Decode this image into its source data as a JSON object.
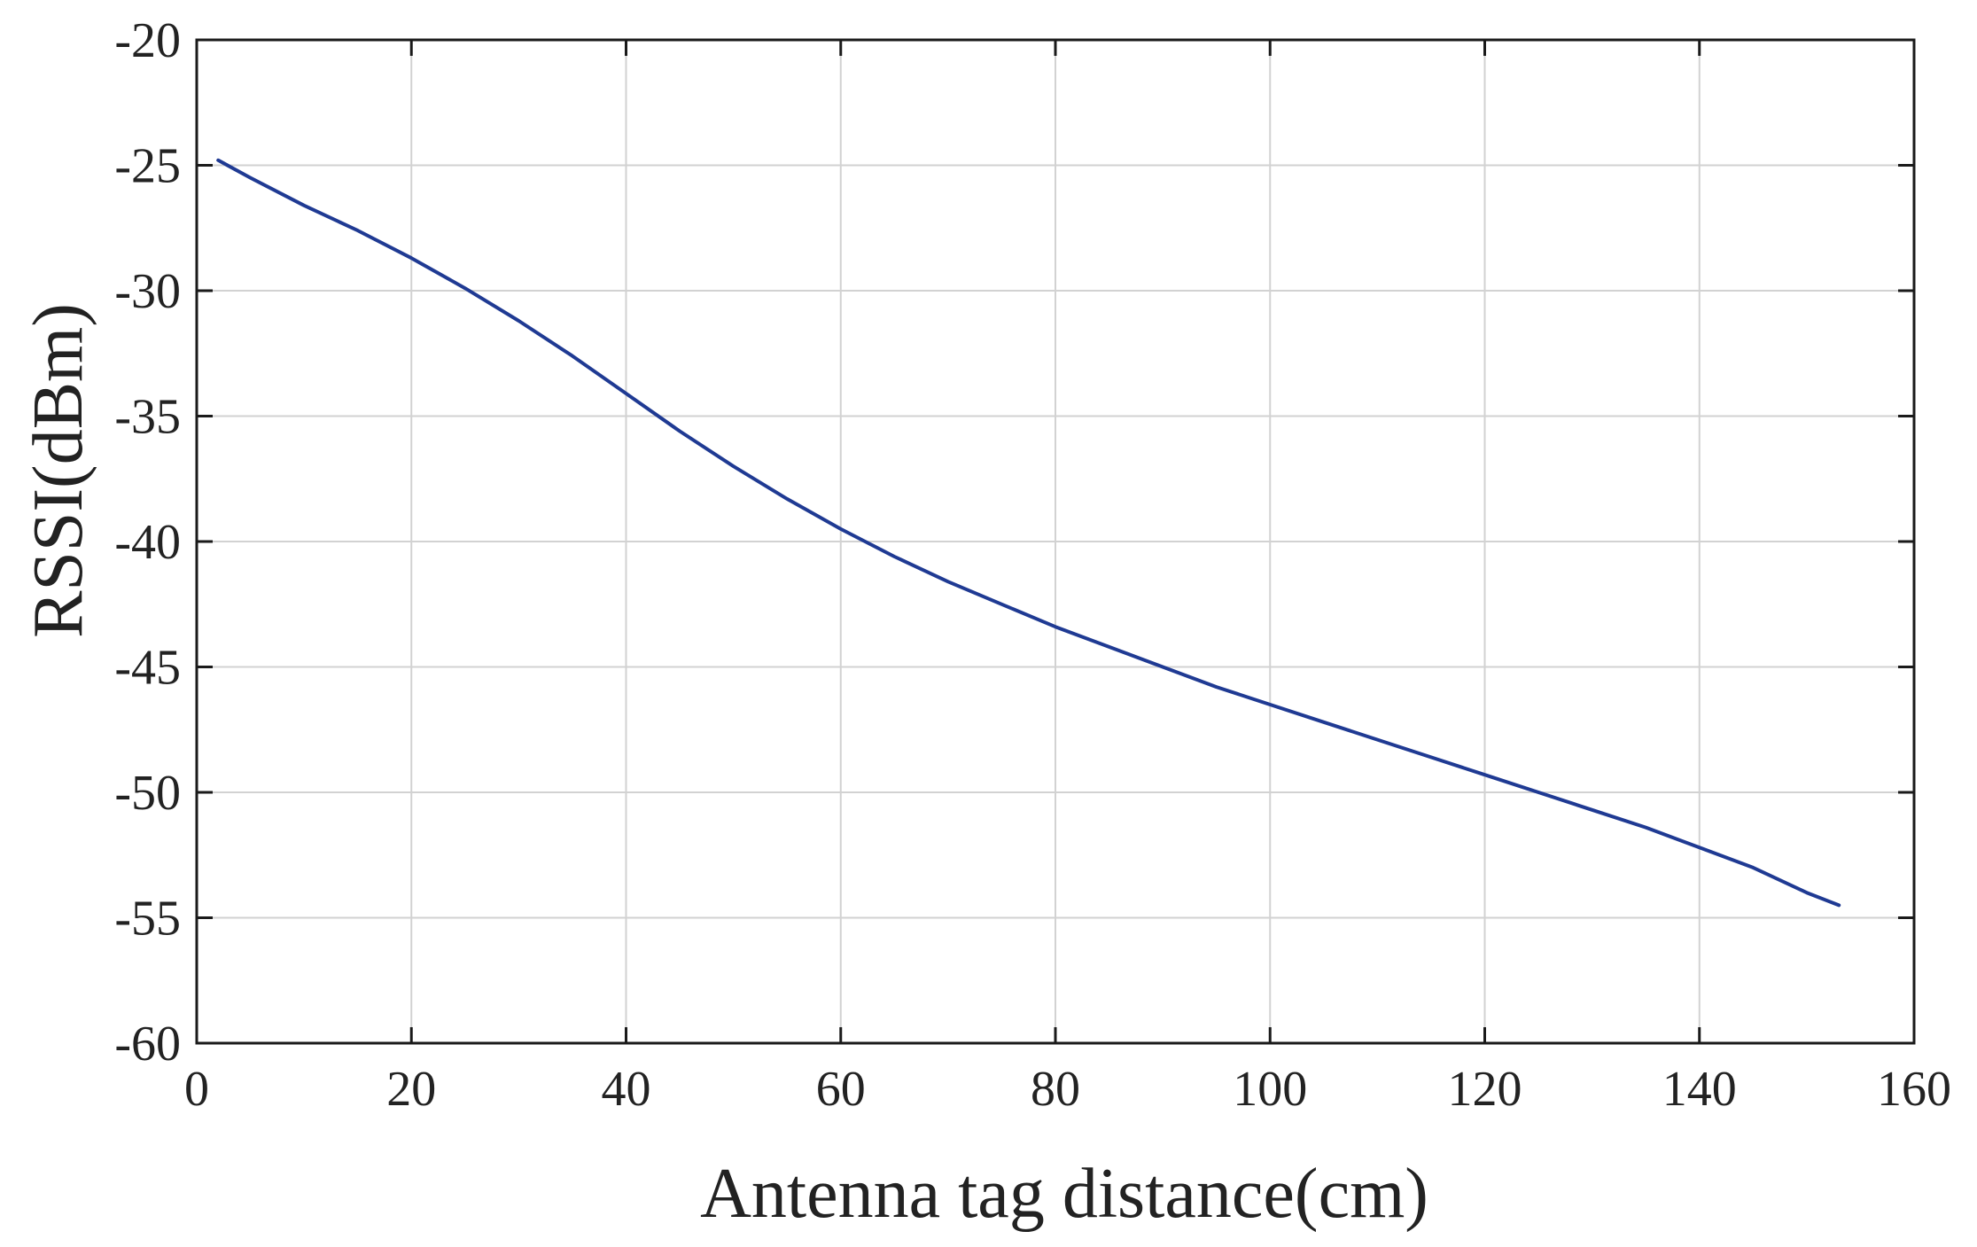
{
  "chart_data": {
    "type": "line",
    "title": "",
    "xlabel": "Antenna tag distance(cm)",
    "ylabel": "RSSI(dBm)",
    "xlim": [
      0,
      160
    ],
    "ylim": [
      -60,
      -20
    ],
    "xticks": [
      0,
      20,
      40,
      60,
      80,
      100,
      120,
      140,
      160
    ],
    "yticks": [
      -20,
      -25,
      -30,
      -35,
      -40,
      -45,
      -50,
      -55,
      -60
    ],
    "xtick_labels": [
      "0",
      "20",
      "40",
      "60",
      "80",
      "100",
      "120",
      "140",
      "160"
    ],
    "ytick_labels": [
      "-20",
      "-25",
      "-30",
      "-35",
      "-40",
      "-45",
      "-50",
      "-55",
      "-60"
    ],
    "grid": true,
    "legend": "none",
    "colors": {
      "line": "#1f3a93"
    },
    "series": [
      {
        "x": [
          2,
          5,
          10,
          15,
          20,
          25,
          30,
          35,
          40,
          45,
          50,
          55,
          60,
          65,
          70,
          75,
          80,
          85,
          90,
          95,
          100,
          105,
          110,
          115,
          120,
          125,
          130,
          135,
          140,
          145,
          150,
          153
        ],
        "values": [
          -24.8,
          -25.5,
          -26.6,
          -27.6,
          -28.7,
          -29.9,
          -31.2,
          -32.6,
          -34.1,
          -35.6,
          -37.0,
          -38.3,
          -39.5,
          -40.6,
          -41.6,
          -42.5,
          -43.4,
          -44.2,
          -45.0,
          -45.8,
          -46.5,
          -47.2,
          -47.9,
          -48.6,
          -49.3,
          -50.0,
          -50.7,
          -51.4,
          -52.2,
          -53.0,
          -54.0,
          -54.5
        ]
      }
    ]
  }
}
